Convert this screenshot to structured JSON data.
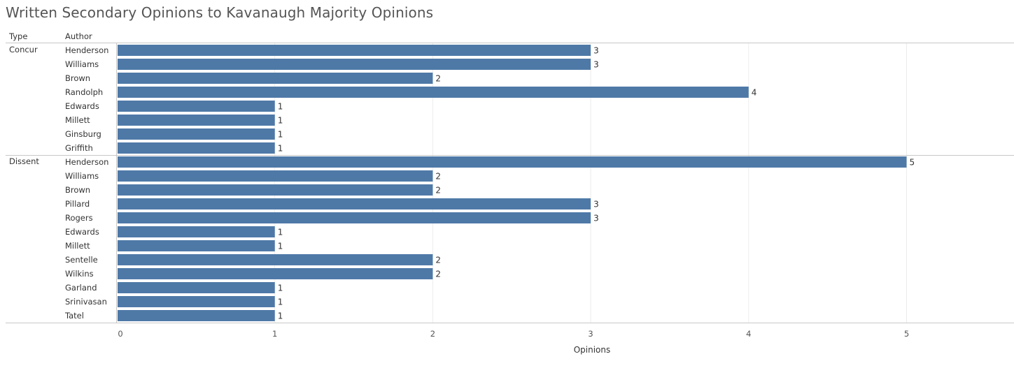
{
  "title": "Written Secondary Opinions to Kavanaugh Majority Opinions",
  "headers": {
    "type": "Type",
    "author": "Author"
  },
  "colors": {
    "bar": "#4e79a7",
    "grid": "#ececec",
    "divider": "#c8c8c8"
  },
  "chart_data": {
    "type": "bar",
    "orientation": "horizontal",
    "title": "Written Secondary Opinions to Kavanaugh Majority Opinions",
    "xlabel": "Opinions",
    "ylabel": "",
    "xlim": [
      0,
      5.65
    ],
    "xticks": [
      0,
      1,
      2,
      3,
      4,
      5
    ],
    "groups": [
      {
        "type": "Concur",
        "rows": [
          {
            "author": "Henderson",
            "value": 3
          },
          {
            "author": "Williams",
            "value": 3
          },
          {
            "author": "Brown",
            "value": 2
          },
          {
            "author": "Randolph",
            "value": 4
          },
          {
            "author": "Edwards",
            "value": 1
          },
          {
            "author": "Millett",
            "value": 1
          },
          {
            "author": "Ginsburg",
            "value": 1
          },
          {
            "author": "Griffith",
            "value": 1
          }
        ]
      },
      {
        "type": "Dissent",
        "rows": [
          {
            "author": "Henderson",
            "value": 5
          },
          {
            "author": "Williams",
            "value": 2
          },
          {
            "author": "Brown",
            "value": 2
          },
          {
            "author": "Pillard",
            "value": 3
          },
          {
            "author": "Rogers",
            "value": 3
          },
          {
            "author": "Edwards",
            "value": 1
          },
          {
            "author": "Millett",
            "value": 1
          },
          {
            "author": "Sentelle",
            "value": 2
          },
          {
            "author": "Wilkins",
            "value": 2
          },
          {
            "author": "Garland",
            "value": 1
          },
          {
            "author": "Srinivasan",
            "value": 1
          },
          {
            "author": "Tatel",
            "value": 1
          }
        ]
      }
    ]
  }
}
